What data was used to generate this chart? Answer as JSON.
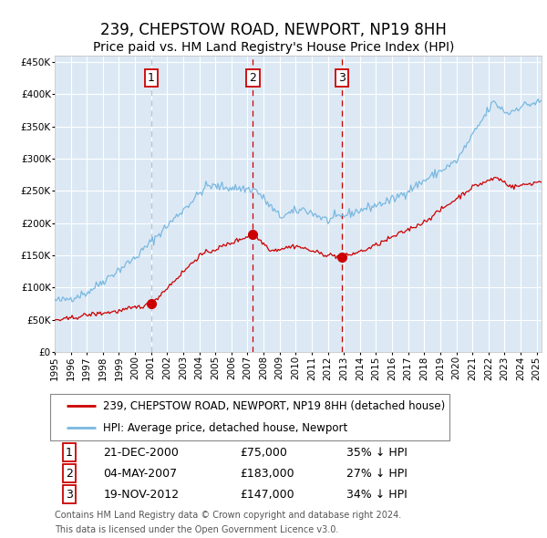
{
  "title": "239, CHEPSTOW ROAD, NEWPORT, NP19 8HH",
  "subtitle": "Price paid vs. HM Land Registry's House Price Index (HPI)",
  "legend_property": "239, CHEPSTOW ROAD, NEWPORT, NP19 8HH (detached house)",
  "legend_hpi": "HPI: Average price, detached house, Newport",
  "footer1": "Contains HM Land Registry data © Crown copyright and database right 2024.",
  "footer2": "This data is licensed under the Open Government Licence v3.0.",
  "transactions": [
    {
      "label": "1",
      "date": "21-DEC-2000",
      "date_x": 2001.0,
      "price": 75000,
      "hpi_pct": "35% ↓ HPI",
      "vline_style": "dashed_gray"
    },
    {
      "label": "2",
      "date": "04-MAY-2007",
      "date_x": 2007.34,
      "price": 183000,
      "hpi_pct": "27% ↓ HPI",
      "vline_style": "dashed_red"
    },
    {
      "label": "3",
      "date": "19-NOV-2012",
      "date_x": 2012.88,
      "price": 147000,
      "hpi_pct": "34% ↓ HPI",
      "vline_style": "dashed_red"
    }
  ],
  "ylim": [
    0,
    460000
  ],
  "xlim_start": 1995.0,
  "xlim_end": 2025.3,
  "plot_bg": "#dce9f5",
  "hpi_color": "#7ab8e0",
  "property_color": "#cc0000",
  "vline_red_color": "#cc0000",
  "vline_gray_color": "#aaaaaa",
  "grid_color": "#ffffff",
  "box_color": "#cc0000",
  "title_fontsize": 12,
  "subtitle_fontsize": 10,
  "tick_fontsize": 7.5,
  "legend_fontsize": 8.5,
  "table_fontsize": 9,
  "footer_fontsize": 7
}
